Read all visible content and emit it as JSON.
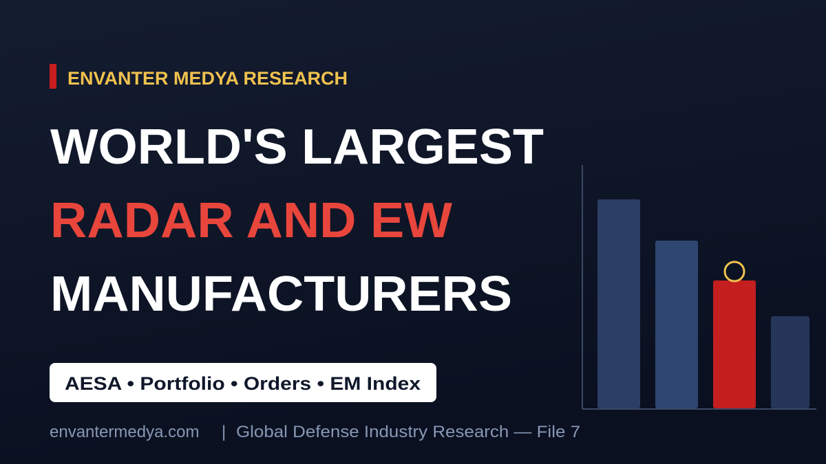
{
  "kicker": "ENVANTER MEDYA RESEARCH",
  "title": {
    "line1": "WORLD'S LARGEST",
    "line2": "RADAR AND EW",
    "line3": "MANUFACTURERS"
  },
  "tags": "AESA • Portfolio • Orders • EM Index",
  "footer": {
    "site": "envantermedya.com",
    "separator": "|",
    "text": "Global Defense Industry Research — File 7"
  }
}
